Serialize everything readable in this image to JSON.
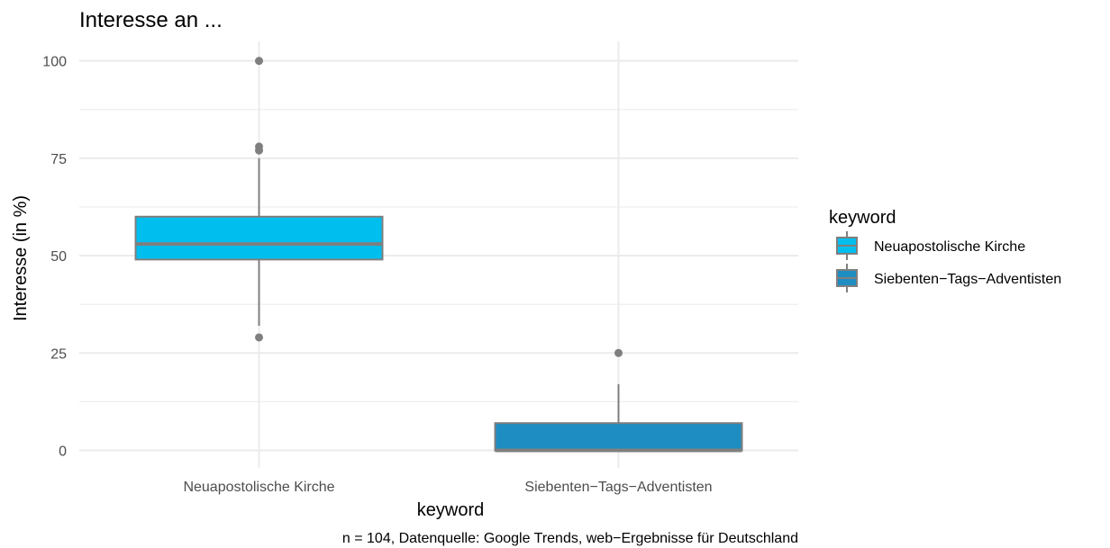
{
  "chart_data": {
    "type": "boxplot",
    "title": "Interesse an ...",
    "xlabel": "keyword",
    "ylabel": "Interesse (in %)",
    "caption": "n = 104, Datenquelle: Google Trends, web−Ergebnisse für Deutschland",
    "ylim": [
      -4.5,
      105
    ],
    "yticks": [
      0,
      25,
      50,
      75,
      100
    ],
    "ytick_labels": [
      "0",
      "25",
      "50",
      "75",
      "100"
    ],
    "grid": true,
    "legend_position": "right",
    "legend_title": "keyword",
    "categories": [
      "Neuapostolische Kirche",
      "Siebenten−Tags−Adventisten"
    ],
    "boxes": [
      {
        "name": "Neuapostolische Kirche",
        "color": "#00BFEF",
        "whisker_low": 32,
        "q1": 49,
        "median": 53,
        "q3": 60,
        "whisker_high": 75,
        "outliers": [
          100,
          78,
          77,
          29
        ]
      },
      {
        "name": "Siebenten−Tags−Adventisten",
        "color": "#1E8EC2",
        "whisker_low": 0,
        "q1": 0,
        "median": 0,
        "q3": 7,
        "whisker_high": 17,
        "outliers": [
          25
        ]
      }
    ]
  }
}
